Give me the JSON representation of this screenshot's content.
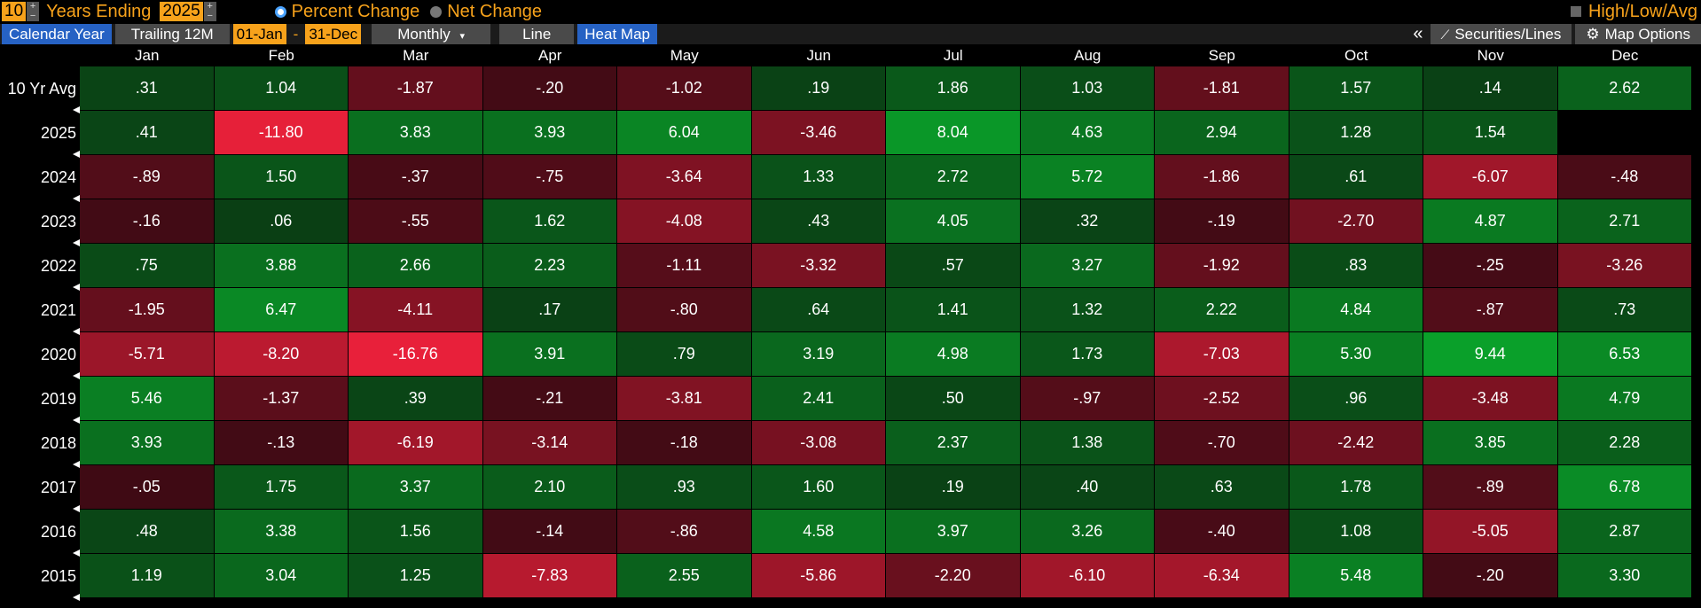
{
  "toolbar": {
    "years_value": "10",
    "years_label": "Years Ending",
    "year_value": "2025",
    "percent_change": "Percent Change",
    "net_change": "Net Change",
    "high_low_avg": "High/Low/Avg",
    "calendar_year": "Calendar Year",
    "trailing": "Trailing 12M",
    "start_date": "01-Jan",
    "dash": "-",
    "end_date": "31-Dec",
    "period": "Monthly",
    "line": "Line",
    "heat_map": "Heat Map",
    "collapse": "«",
    "securities_lines": "Securities/Lines",
    "map_options": "Map Options"
  },
  "months": [
    "Jan",
    "Feb",
    "Mar",
    "Apr",
    "May",
    "Jun",
    "Jul",
    "Aug",
    "Sep",
    "Oct",
    "Nov",
    "Dec"
  ],
  "rows": [
    {
      "label": "10 Yr Avg",
      "values": [
        ".31",
        "1.04",
        "-1.87",
        "-.20",
        "-1.02",
        ".19",
        "1.86",
        "1.03",
        "-1.81",
        "1.57",
        ".14",
        "2.62"
      ]
    },
    {
      "label": "2025",
      "values": [
        ".41",
        "-11.80",
        "3.83",
        "3.93",
        "6.04",
        "-3.46",
        "8.04",
        "4.63",
        "2.94",
        "1.28",
        "1.54",
        ""
      ]
    },
    {
      "label": "2024",
      "values": [
        "-.89",
        "1.50",
        "-.37",
        "-.75",
        "-3.64",
        "1.33",
        "2.72",
        "5.72",
        "-1.86",
        ".61",
        "-6.07",
        "-.48"
      ]
    },
    {
      "label": "2023",
      "values": [
        "-.16",
        ".06",
        "-.55",
        "1.62",
        "-4.08",
        ".43",
        "4.05",
        ".32",
        "-.19",
        "-2.70",
        "4.87",
        "2.71"
      ]
    },
    {
      "label": "2022",
      "values": [
        ".75",
        "3.88",
        "2.66",
        "2.23",
        "-1.11",
        "-3.32",
        ".57",
        "3.27",
        "-1.92",
        ".83",
        "-.25",
        "-3.26"
      ]
    },
    {
      "label": "2021",
      "values": [
        "-1.95",
        "6.47",
        "-4.11",
        ".17",
        "-.80",
        ".64",
        "1.41",
        "1.32",
        "2.22",
        "4.84",
        "-.87",
        ".73"
      ]
    },
    {
      "label": "2020",
      "values": [
        "-5.71",
        "-8.20",
        "-16.76",
        "3.91",
        ".79",
        "3.19",
        "4.98",
        "1.73",
        "-7.03",
        "5.30",
        "9.44",
        "6.53"
      ]
    },
    {
      "label": "2019",
      "values": [
        "5.46",
        "-1.37",
        ".39",
        "-.21",
        "-3.81",
        "2.41",
        ".50",
        "-.97",
        "-2.52",
        ".96",
        "-3.48",
        "4.79"
      ]
    },
    {
      "label": "2018",
      "values": [
        "3.93",
        "-.13",
        "-6.19",
        "-3.14",
        "-.18",
        "-3.08",
        "2.37",
        "1.38",
        "-.70",
        "-2.42",
        "3.85",
        "2.28"
      ]
    },
    {
      "label": "2017",
      "values": [
        "-.05",
        "1.75",
        "3.37",
        "2.10",
        ".93",
        "1.60",
        ".19",
        ".40",
        ".63",
        "1.78",
        "-.89",
        "6.78"
      ]
    },
    {
      "label": "2016",
      "values": [
        ".48",
        "3.38",
        "1.56",
        "-.14",
        "-.86",
        "4.58",
        "3.97",
        "3.26",
        "-.40",
        "1.08",
        "-5.05",
        "2.87"
      ]
    },
    {
      "label": "2015",
      "values": [
        "1.19",
        "3.04",
        "1.25",
        "-7.83",
        "2.55",
        "-5.86",
        "-2.20",
        "-6.10",
        "-6.34",
        "5.48",
        "-.20",
        "3.30"
      ]
    }
  ],
  "colors": {
    "positive_max": "#0aa02a",
    "positive_min": "#0a3d14",
    "negative_min": "#3d0a14",
    "negative_max": "#e8203a",
    "empty": "#000000"
  }
}
